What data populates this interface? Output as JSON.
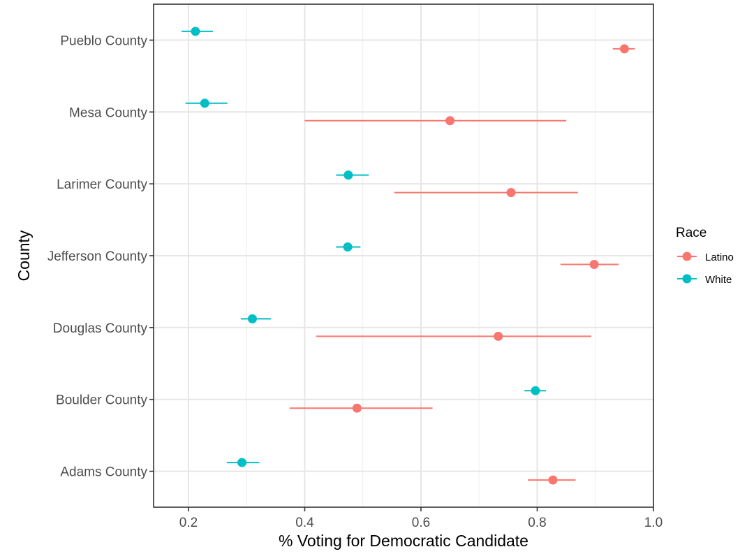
{
  "chart_data": {
    "type": "pointrange",
    "orientation": "horizontal",
    "title": "",
    "xlabel": "% Voting for Democratic Candidate",
    "ylabel": "County",
    "xlim": [
      0.14,
      1.0
    ],
    "xticks": [
      0.2,
      0.4,
      0.6,
      0.8,
      1.0
    ],
    "xtick_labels": [
      "0.2",
      "0.4",
      "0.6",
      "0.8",
      "1.0"
    ],
    "categories": [
      "Adams County",
      "Boulder County",
      "Douglas County",
      "Jefferson County",
      "Larimer County",
      "Mesa County",
      "Pueblo County"
    ],
    "grid": true,
    "legend": {
      "title": "Race",
      "position": "right",
      "entries": [
        "Latino",
        "White"
      ]
    },
    "series": [
      {
        "name": "Latino",
        "color": "#F8766D",
        "values": [
          0.827,
          0.49,
          0.733,
          0.898,
          0.755,
          0.65,
          0.95
        ],
        "lower": [
          0.784,
          0.374,
          0.42,
          0.84,
          0.554,
          0.4,
          0.93
        ],
        "upper": [
          0.866,
          0.62,
          0.893,
          0.94,
          0.87,
          0.85,
          0.968
        ]
      },
      {
        "name": "White",
        "color": "#00BFC4",
        "values": [
          0.292,
          0.797,
          0.31,
          0.474,
          0.475,
          0.228,
          0.212
        ],
        "lower": [
          0.266,
          0.778,
          0.29,
          0.454,
          0.454,
          0.195,
          0.188
        ],
        "upper": [
          0.322,
          0.815,
          0.342,
          0.496,
          0.51,
          0.267,
          0.242
        ]
      }
    ]
  }
}
